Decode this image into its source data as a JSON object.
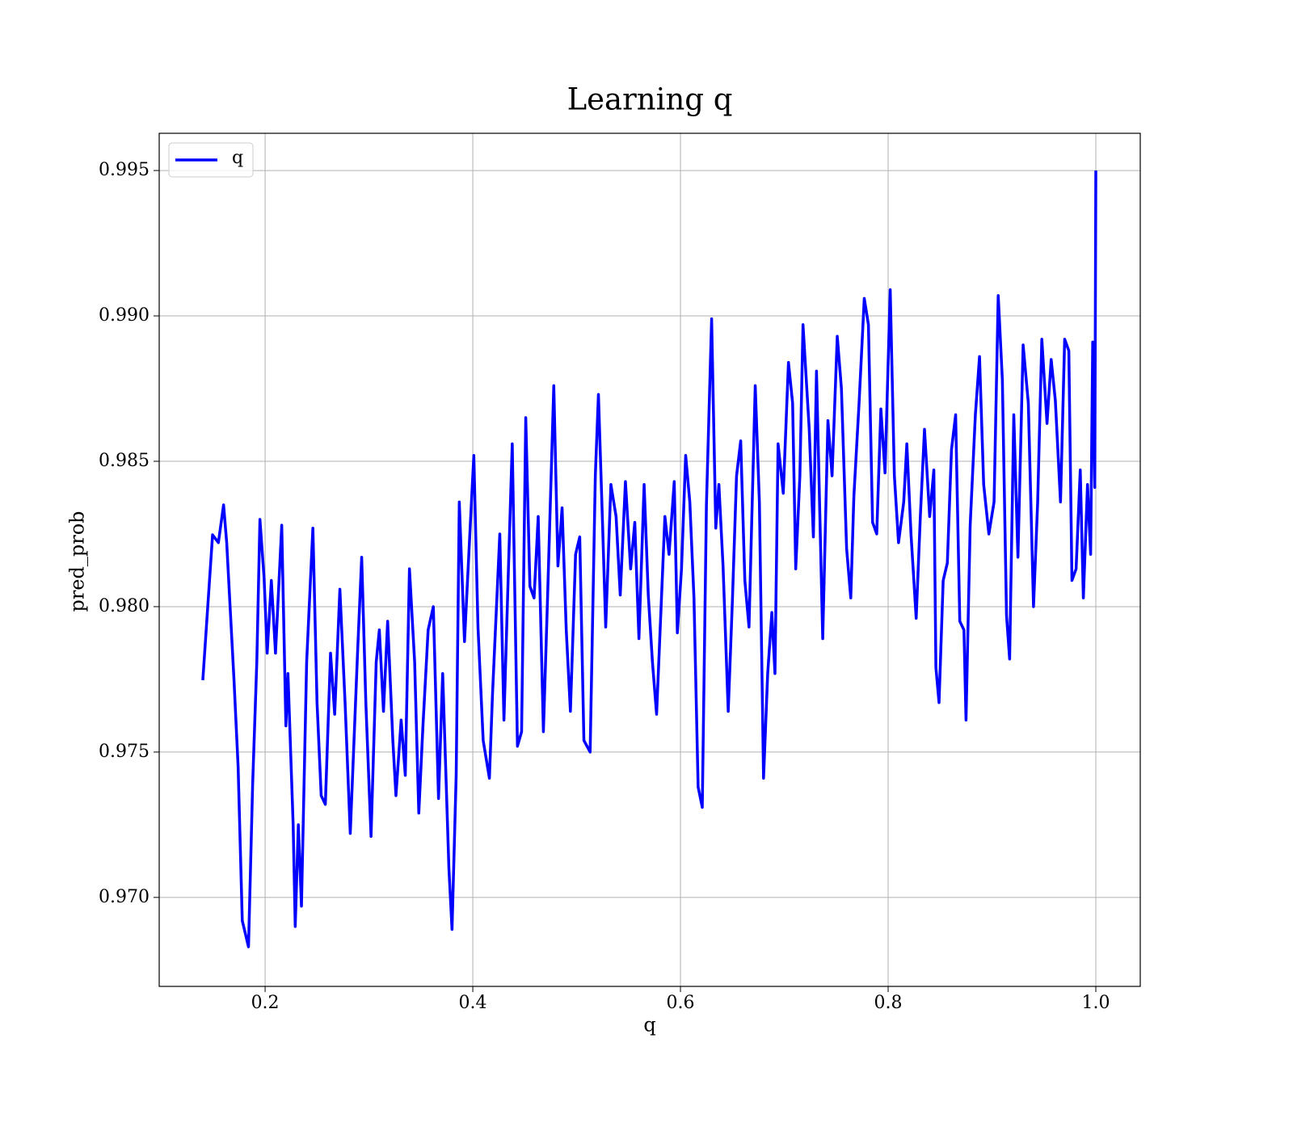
{
  "chart_data": {
    "type": "line",
    "title": "Learning q",
    "x_label": "q",
    "y_label": "pred_prob",
    "x": [
      0.14,
      0.1494,
      0.155,
      0.16,
      0.163,
      0.17,
      0.174,
      0.178,
      0.184,
      0.188,
      0.192,
      0.195,
      0.199,
      0.202,
      0.206,
      0.21,
      0.216,
      0.22,
      0.222,
      0.227,
      0.229,
      0.232,
      0.235,
      0.24,
      0.246,
      0.25,
      0.254,
      0.258,
      0.263,
      0.267,
      0.272,
      0.277,
      0.282,
      0.289,
      0.293,
      0.297,
      0.302,
      0.307,
      0.31,
      0.314,
      0.318,
      0.323,
      0.326,
      0.331,
      0.335,
      0.339,
      0.344,
      0.348,
      0.352,
      0.357,
      0.362,
      0.367,
      0.371,
      0.377,
      0.38,
      0.384,
      0.387,
      0.392,
      0.398,
      0.401,
      0.405,
      0.41,
      0.416,
      0.419,
      0.426,
      0.43,
      0.435,
      0.438,
      0.443,
      0.447,
      0.451,
      0.455,
      0.459,
      0.463,
      0.468,
      0.472,
      0.478,
      0.482,
      0.486,
      0.49,
      0.494,
      0.499,
      0.503,
      0.507,
      0.513,
      0.518,
      0.521,
      0.525,
      0.528,
      0.533,
      0.538,
      0.542,
      0.547,
      0.552,
      0.556,
      0.56,
      0.565,
      0.569,
      0.573,
      0.577,
      0.581,
      0.585,
      0.589,
      0.594,
      0.597,
      0.601,
      0.605,
      0.609,
      0.613,
      0.617,
      0.621,
      0.625,
      0.63,
      0.634,
      0.637,
      0.641,
      0.646,
      0.65,
      0.654,
      0.658,
      0.662,
      0.666,
      0.672,
      0.676,
      0.68,
      0.684,
      0.688,
      0.691,
      0.694,
      0.699,
      0.704,
      0.708,
      0.711,
      0.715,
      0.718,
      0.724,
      0.728,
      0.731,
      0.737,
      0.742,
      0.746,
      0.751,
      0.755,
      0.76,
      0.764,
      0.767,
      0.772,
      0.777,
      0.781,
      0.785,
      0.789,
      0.793,
      0.797,
      0.802,
      0.806,
      0.81,
      0.815,
      0.818,
      0.822,
      0.827,
      0.831,
      0.835,
      0.84,
      0.844,
      0.846,
      0.849,
      0.853,
      0.857,
      0.861,
      0.865,
      0.869,
      0.873,
      0.875,
      0.879,
      0.884,
      0.888,
      0.892,
      0.897,
      0.902,
      0.906,
      0.91,
      0.914,
      0.917,
      0.921,
      0.925,
      0.93,
      0.935,
      0.94,
      0.944,
      0.948,
      0.953,
      0.957,
      0.961,
      0.966,
      0.97,
      0.974,
      0.977,
      0.981,
      0.985,
      0.988,
      0.992,
      0.995,
      0.997,
      0.999,
      1.0
    ],
    "series": [
      {
        "name": "q",
        "color": "#0000ff",
        "values": [
          0.97747,
          0.98247,
          0.9822,
          0.9835,
          0.9822,
          0.9775,
          0.9745,
          0.9692,
          0.9683,
          0.9739,
          0.9781,
          0.983,
          0.981,
          0.9784,
          0.9809,
          0.9784,
          0.9828,
          0.9759,
          0.9777,
          0.9725,
          0.969,
          0.9725,
          0.9697,
          0.9781,
          0.9827,
          0.9767,
          0.9735,
          0.9732,
          0.9784,
          0.9763,
          0.9806,
          0.9767,
          0.9722,
          0.9784,
          0.9817,
          0.9767,
          0.9721,
          0.9781,
          0.9792,
          0.9764,
          0.9795,
          0.9754,
          0.9735,
          0.9761,
          0.9742,
          0.9813,
          0.9781,
          0.9729,
          0.9759,
          0.9792,
          0.98,
          0.9734,
          0.9777,
          0.971,
          0.9689,
          0.9742,
          0.9836,
          0.9788,
          0.9831,
          0.9852,
          0.9793,
          0.9754,
          0.9741,
          0.977,
          0.9825,
          0.9761,
          0.9821,
          0.9856,
          0.9752,
          0.9757,
          0.9865,
          0.9807,
          0.9803,
          0.9831,
          0.9757,
          0.9803,
          0.9876,
          0.9814,
          0.9834,
          0.9792,
          0.9764,
          0.9818,
          0.9824,
          0.9754,
          0.975,
          0.9845,
          0.9873,
          0.9828,
          0.9793,
          0.9842,
          0.9831,
          0.9804,
          0.9843,
          0.9813,
          0.9829,
          0.9789,
          0.9842,
          0.9804,
          0.9781,
          0.9763,
          0.9797,
          0.9831,
          0.9818,
          0.9843,
          0.9791,
          0.9813,
          0.9852,
          0.9836,
          0.9803,
          0.9738,
          0.9731,
          0.9835,
          0.9899,
          0.9827,
          0.9842,
          0.9814,
          0.9764,
          0.9802,
          0.9845,
          0.9857,
          0.9809,
          0.9793,
          0.9876,
          0.9836,
          0.9741,
          0.9777,
          0.9798,
          0.9777,
          0.9856,
          0.9839,
          0.9884,
          0.987,
          0.9813,
          0.9845,
          0.9897,
          0.9861,
          0.9824,
          0.9881,
          0.9789,
          0.9864,
          0.9845,
          0.9893,
          0.9875,
          0.982,
          0.9803,
          0.9838,
          0.987,
          0.9906,
          0.9897,
          0.9829,
          0.9825,
          0.9868,
          0.9846,
          0.9909,
          0.9845,
          0.9822,
          0.9836,
          0.9856,
          0.9825,
          0.9796,
          0.9831,
          0.9861,
          0.9831,
          0.9847,
          0.9779,
          0.9767,
          0.9809,
          0.9815,
          0.9854,
          0.9866,
          0.9795,
          0.9792,
          0.9761,
          0.9828,
          0.9866,
          0.9886,
          0.9842,
          0.9825,
          0.9836,
          0.9907,
          0.9878,
          0.9797,
          0.9782,
          0.9866,
          0.9817,
          0.989,
          0.987,
          0.98,
          0.9836,
          0.9892,
          0.9863,
          0.9885,
          0.9871,
          0.9836,
          0.9892,
          0.9888,
          0.9809,
          0.9813,
          0.9847,
          0.9803,
          0.9842,
          0.9818,
          0.9891,
          0.9841,
          0.995
        ]
      }
    ],
    "xlim": [
      0.098,
      1.0428
    ],
    "ylim": [
      0.96694,
      0.99628
    ],
    "xticks": [
      0.2,
      0.4,
      0.6,
      0.8,
      {
        "value": 1.0,
        "label": "1.0"
      }
    ],
    "yticks": [
      {
        "value": 0.97,
        "label": "0.970"
      },
      {
        "value": 0.975,
        "label": "0.975"
      },
      {
        "value": 0.98,
        "label": "0.980"
      },
      {
        "value": 0.985,
        "label": "0.985"
      },
      {
        "value": 0.99,
        "label": "0.990"
      },
      {
        "value": 0.995,
        "label": "0.995"
      }
    ],
    "grid": true,
    "legend": "upper left"
  }
}
